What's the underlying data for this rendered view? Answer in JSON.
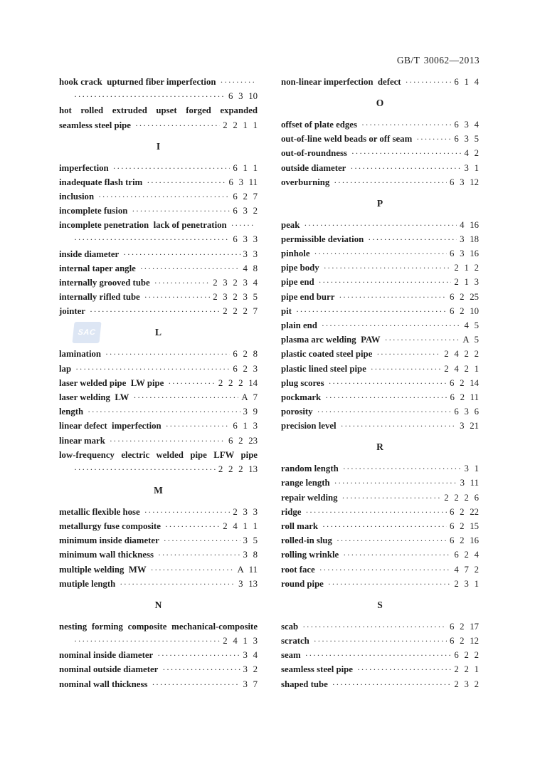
{
  "header": {
    "doc_number": "GB/T 30062—2013"
  },
  "watermark": {
    "label": "SAC"
  },
  "columns": [
    {
      "blocks": [
        {
          "type": "entry",
          "lines": [
            {
              "text": "hook crack  upturned fiber imperfection",
              "leader": true
            },
            {
              "indent": true,
              "leader": true,
              "num": "6 3 10"
            }
          ]
        },
        {
          "type": "entry",
          "lines": [
            {
              "text": "hot rolled extruded upset forged expanded",
              "justify": true
            },
            {
              "text": "seamless steel pipe",
              "leader": true,
              "num": "2 2 1 1"
            }
          ]
        },
        {
          "type": "heading",
          "text": "I"
        },
        {
          "type": "entry",
          "lines": [
            {
              "text": "imperfection",
              "leader": true,
              "num": "6 1 1"
            }
          ]
        },
        {
          "type": "entry",
          "lines": [
            {
              "text": "inadequate flash trim",
              "leader": true,
              "num": "6 3 11"
            }
          ]
        },
        {
          "type": "entry",
          "lines": [
            {
              "text": "inclusion",
              "leader": true,
              "num": "6 2 7"
            }
          ]
        },
        {
          "type": "entry",
          "lines": [
            {
              "text": "incomplete fusion",
              "leader": true,
              "num": "6 3 2"
            }
          ]
        },
        {
          "type": "entry",
          "lines": [
            {
              "text": "incomplete penetration  lack of penetration",
              "leader": true
            },
            {
              "indent": true,
              "leader": true,
              "num": "6 3 3"
            }
          ]
        },
        {
          "type": "entry",
          "lines": [
            {
              "text": "inside diameter",
              "leader": true,
              "num": "3 3"
            }
          ]
        },
        {
          "type": "entry",
          "lines": [
            {
              "text": "internal taper angle",
              "leader": true,
              "num": "4 8"
            }
          ]
        },
        {
          "type": "entry",
          "lines": [
            {
              "text": "internally grooved tube",
              "leader": true,
              "num": "2 3 2 3 4"
            }
          ]
        },
        {
          "type": "entry",
          "lines": [
            {
              "text": "internally rifled tube",
              "leader": true,
              "num": "2 3 2 3 5"
            }
          ]
        },
        {
          "type": "entry",
          "lines": [
            {
              "text": "jointer",
              "leader": true,
              "num": "2 2 2 7"
            }
          ]
        },
        {
          "type": "heading",
          "text": "L"
        },
        {
          "type": "entry",
          "lines": [
            {
              "text": "lamination",
              "leader": true,
              "num": "6 2 8"
            }
          ]
        },
        {
          "type": "entry",
          "lines": [
            {
              "text": "lap",
              "leader": true,
              "num": "6 2 3"
            }
          ]
        },
        {
          "type": "entry",
          "lines": [
            {
              "text": "laser welded pipe  LW pipe",
              "leader": true,
              "num": "2 2 2 14"
            }
          ]
        },
        {
          "type": "entry",
          "lines": [
            {
              "text": "laser welding  LW",
              "leader": true,
              "num": "A 7"
            }
          ]
        },
        {
          "type": "entry",
          "lines": [
            {
              "text": "length",
              "leader": true,
              "num": "3 9"
            }
          ]
        },
        {
          "type": "entry",
          "lines": [
            {
              "text": "linear defect  imperfection",
              "leader": true,
              "num": "6 1 3"
            }
          ]
        },
        {
          "type": "entry",
          "lines": [
            {
              "text": "linear mark",
              "leader": true,
              "num": "6 2 23"
            }
          ]
        },
        {
          "type": "entry",
          "lines": [
            {
              "text": "low-frequency electric welded pipe  LFW pipe",
              "justify": true
            },
            {
              "indent": true,
              "leader": true,
              "num": "2 2 2 13"
            }
          ]
        },
        {
          "type": "heading",
          "text": "M"
        },
        {
          "type": "entry",
          "lines": [
            {
              "text": "metallic flexible hose",
              "leader": true,
              "num": "2 3 3"
            }
          ]
        },
        {
          "type": "entry",
          "lines": [
            {
              "text": "metallurgy fuse composite",
              "leader": true,
              "num": "2 4 1 1"
            }
          ]
        },
        {
          "type": "entry",
          "lines": [
            {
              "text": "minimum inside diameter",
              "leader": true,
              "num": "3 5"
            }
          ]
        },
        {
          "type": "entry",
          "lines": [
            {
              "text": "minimum wall thickness",
              "leader": true,
              "num": "3 8"
            }
          ]
        },
        {
          "type": "entry",
          "lines": [
            {
              "text": "multiple welding  MW",
              "leader": true,
              "num": "A 11"
            }
          ]
        },
        {
          "type": "entry",
          "lines": [
            {
              "text": "mutiple length",
              "leader": true,
              "num": "3 13"
            }
          ]
        },
        {
          "type": "heading",
          "text": "N"
        },
        {
          "type": "entry",
          "lines": [
            {
              "text": "nesting forming composite  mechanical-composite",
              "justify": true
            },
            {
              "indent": true,
              "leader": true,
              "num": "2 4 1 3"
            }
          ]
        },
        {
          "type": "entry",
          "lines": [
            {
              "text": "nominal inside diameter",
              "leader": true,
              "num": "3 4"
            }
          ]
        },
        {
          "type": "entry",
          "lines": [
            {
              "text": "nominal outside diameter",
              "leader": true,
              "num": "3 2"
            }
          ]
        },
        {
          "type": "entry",
          "lines": [
            {
              "text": "nominal wall thickness",
              "leader": true,
              "num": "3 7"
            }
          ]
        }
      ]
    },
    {
      "blocks": [
        {
          "type": "entry",
          "lines": [
            {
              "text": "non-linear imperfection  defect",
              "leader": true,
              "num": "6 1 4"
            }
          ]
        },
        {
          "type": "heading",
          "text": "O"
        },
        {
          "type": "entry",
          "lines": [
            {
              "text": "offset of plate edges",
              "leader": true,
              "num": "6 3 4"
            }
          ]
        },
        {
          "type": "entry",
          "lines": [
            {
              "text": "out-of-line weld beads or off seam",
              "leader": true,
              "num": "6 3 5"
            }
          ]
        },
        {
          "type": "entry",
          "lines": [
            {
              "text": "out-of-roundness",
              "leader": true,
              "num": "4 2"
            }
          ]
        },
        {
          "type": "entry",
          "lines": [
            {
              "text": "outside diameter",
              "leader": true,
              "num": "3 1"
            }
          ]
        },
        {
          "type": "entry",
          "lines": [
            {
              "text": "overburning",
              "leader": true,
              "num": "6 3 12"
            }
          ]
        },
        {
          "type": "heading",
          "text": "P"
        },
        {
          "type": "entry",
          "lines": [
            {
              "text": "peak",
              "leader": true,
              "num": "4 16"
            }
          ]
        },
        {
          "type": "entry",
          "lines": [
            {
              "text": "permissible deviation",
              "leader": true,
              "num": "3 18"
            }
          ]
        },
        {
          "type": "entry",
          "lines": [
            {
              "text": "pinhole",
              "leader": true,
              "num": "6 3 16"
            }
          ]
        },
        {
          "type": "entry",
          "lines": [
            {
              "text": "pipe body",
              "leader": true,
              "num": "2 1 2"
            }
          ]
        },
        {
          "type": "entry",
          "lines": [
            {
              "text": "pipe end",
              "leader": true,
              "num": "2 1 3"
            }
          ]
        },
        {
          "type": "entry",
          "lines": [
            {
              "text": "pipe end burr",
              "leader": true,
              "num": "6 2 25"
            }
          ]
        },
        {
          "type": "entry",
          "lines": [
            {
              "text": "pit",
              "leader": true,
              "num": "6 2 10"
            }
          ]
        },
        {
          "type": "entry",
          "lines": [
            {
              "text": "plain end",
              "leader": true,
              "num": "4 5"
            }
          ]
        },
        {
          "type": "entry",
          "lines": [
            {
              "text": "plasma arc welding  PAW",
              "leader": true,
              "num": "A 5"
            }
          ]
        },
        {
          "type": "entry",
          "lines": [
            {
              "text": "plastic coated steel pipe",
              "leader": true,
              "num": "2 4 2 2"
            }
          ]
        },
        {
          "type": "entry",
          "lines": [
            {
              "text": "plastic lined steel pipe",
              "leader": true,
              "num": "2 4 2 1"
            }
          ]
        },
        {
          "type": "entry",
          "lines": [
            {
              "text": "plug scores",
              "leader": true,
              "num": "6 2 14"
            }
          ]
        },
        {
          "type": "entry",
          "lines": [
            {
              "text": "pockmark",
              "leader": true,
              "num": "6 2 11"
            }
          ]
        },
        {
          "type": "entry",
          "lines": [
            {
              "text": "porosity",
              "leader": true,
              "num": "6 3 6"
            }
          ]
        },
        {
          "type": "entry",
          "lines": [
            {
              "text": "precision level",
              "leader": true,
              "num": "3 21"
            }
          ]
        },
        {
          "type": "heading",
          "text": "R"
        },
        {
          "type": "entry",
          "lines": [
            {
              "text": "random length",
              "leader": true,
              "num": "3 1"
            }
          ]
        },
        {
          "type": "entry",
          "lines": [
            {
              "text": "range length",
              "leader": true,
              "num": "3 11"
            }
          ]
        },
        {
          "type": "entry",
          "lines": [
            {
              "text": "repair welding",
              "leader": true,
              "num": "2 2 2 6"
            }
          ]
        },
        {
          "type": "entry",
          "lines": [
            {
              "text": "ridge",
              "leader": true,
              "num": "6 2 22"
            }
          ]
        },
        {
          "type": "entry",
          "lines": [
            {
              "text": "roll mark",
              "leader": true,
              "num": "6 2 15"
            }
          ]
        },
        {
          "type": "entry",
          "lines": [
            {
              "text": "rolled-in slug",
              "leader": true,
              "num": "6 2 16"
            }
          ]
        },
        {
          "type": "entry",
          "lines": [
            {
              "text": "rolling wrinkle",
              "leader": true,
              "num": "6 2 4"
            }
          ]
        },
        {
          "type": "entry",
          "lines": [
            {
              "text": "root face",
              "leader": true,
              "num": "4 7 2"
            }
          ]
        },
        {
          "type": "entry",
          "lines": [
            {
              "text": "round pipe",
              "leader": true,
              "num": "2 3 1"
            }
          ]
        },
        {
          "type": "heading",
          "text": "S"
        },
        {
          "type": "entry",
          "lines": [
            {
              "text": "scab",
              "leader": true,
              "num": "6 2 17"
            }
          ]
        },
        {
          "type": "entry",
          "lines": [
            {
              "text": "scratch",
              "leader": true,
              "num": "6 2 12"
            }
          ]
        },
        {
          "type": "entry",
          "lines": [
            {
              "text": "seam",
              "leader": true,
              "num": "6 2 2"
            }
          ]
        },
        {
          "type": "entry",
          "lines": [
            {
              "text": "seamless steel pipe",
              "leader": true,
              "num": "2 2 1"
            }
          ]
        },
        {
          "type": "entry",
          "lines": [
            {
              "text": "shaped tube",
              "leader": true,
              "num": "2 3 2"
            }
          ]
        }
      ]
    }
  ]
}
